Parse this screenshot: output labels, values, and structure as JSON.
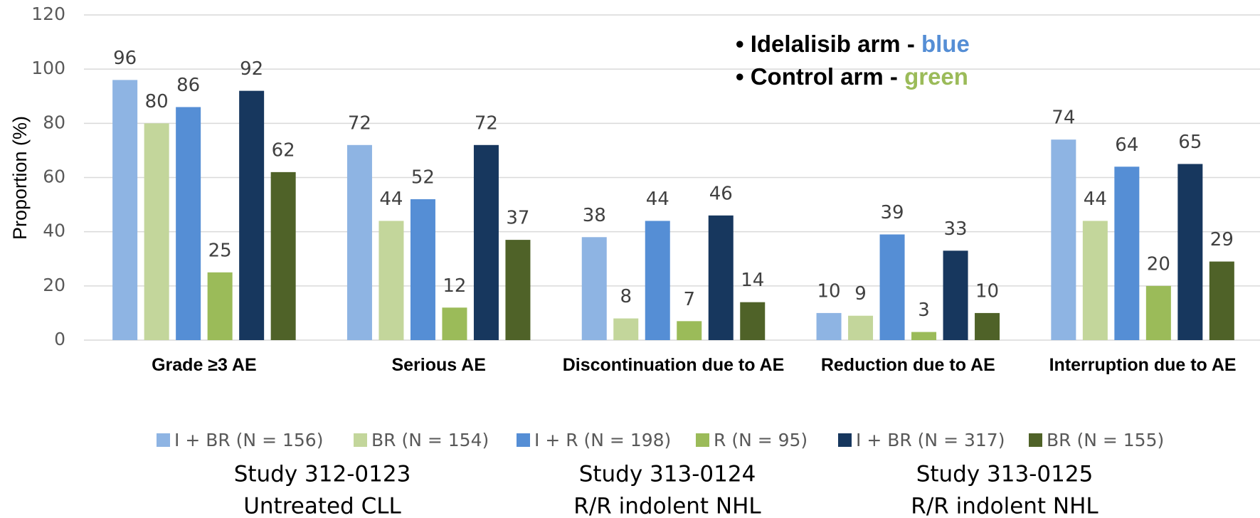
{
  "chart_data": {
    "type": "bar",
    "y_label": "Proportion (%)",
    "categories": [
      "Grade ≥3 AE",
      "Serious AE",
      "Discontinuation due to AE",
      "Reduction due to AE",
      "Interruption due to AE"
    ],
    "series": [
      {
        "name": "I + BR (N = 156)",
        "color": "#8eb4e3",
        "values": [
          96,
          72,
          38,
          10,
          74
        ]
      },
      {
        "name": "BR (N = 154)",
        "color": "#c3d69b",
        "values": [
          80,
          44,
          8,
          9,
          44
        ]
      },
      {
        "name": "I + R (N = 198)",
        "color": "#558ed5",
        "values": [
          86,
          52,
          44,
          39,
          64
        ]
      },
      {
        "name": "R (N = 95)",
        "color": "#9bbb59",
        "values": [
          25,
          12,
          7,
          3,
          20
        ]
      },
      {
        "name": "I + BR (N = 317)",
        "color": "#17375e",
        "values": [
          92,
          72,
          46,
          33,
          65
        ]
      },
      {
        "name": "BR (N = 155)",
        "color": "#4f6228",
        "values": [
          62,
          37,
          14,
          10,
          29
        ]
      }
    ],
    "ylim": [
      0,
      120
    ],
    "yticks": [
      0,
      20,
      40,
      60,
      80,
      100,
      120
    ],
    "grid": true,
    "annotations": [
      {
        "text": "• Idelalisib arm - ",
        "highlight": "blue",
        "highlight_color": "#558ed5"
      },
      {
        "text": "• Control arm - ",
        "highlight": "green",
        "highlight_color": "#9bbb59"
      }
    ],
    "studies": [
      {
        "title": "Study 312-0123",
        "subtitle": "Untreated CLL"
      },
      {
        "title": "Study 313-0124",
        "subtitle": "R/R indolent NHL"
      },
      {
        "title": "Study 313-0125",
        "subtitle": "R/R indolent NHL"
      }
    ]
  }
}
